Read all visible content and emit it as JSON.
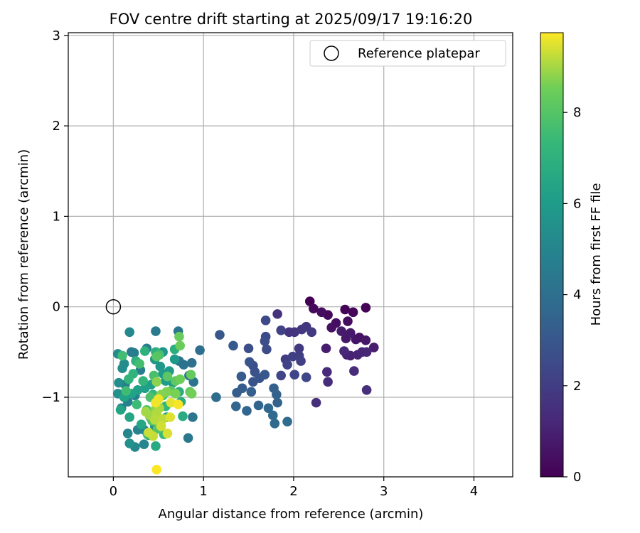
{
  "chart_data": {
    "type": "scatter",
    "title": "FOV centre drift starting at 2025/09/17 19:16:20",
    "xlabel": "Angular distance from reference (arcmin)",
    "ylabel": "Rotation from reference (arcmin)",
    "xlim": [
      -0.5,
      4.43
    ],
    "ylim": [
      -1.88,
      3.03
    ],
    "xticks": [
      0,
      1,
      2,
      3,
      4
    ],
    "yticks": [
      -1,
      0,
      1,
      2,
      3
    ],
    "grid": true,
    "legend": {
      "placement": "top-right",
      "label": "Reference platepar"
    },
    "reference_point": {
      "x": 0,
      "y": 0
    },
    "colorbar": {
      "label": "Hours from first FF file",
      "min": 0,
      "max": 9.75,
      "ticks": [
        0,
        2,
        4,
        6,
        8
      ],
      "colormap": "viridis"
    },
    "series": [
      {
        "fields": [
          "x",
          "y",
          "hours"
        ],
        "points": [
          [
            2.18,
            0.06
          ],
          [
            2.8,
            -0.01
          ],
          [
            2.57,
            -0.03
          ],
          [
            2.66,
            -0.06
          ],
          [
            2.38,
            -0.09
          ],
          [
            2.22,
            -0.02
          ],
          [
            2.31,
            -0.06
          ],
          [
            2.6,
            -0.16
          ],
          [
            2.47,
            -0.18
          ],
          [
            2.42,
            -0.23
          ],
          [
            2.73,
            -0.34
          ],
          [
            2.69,
            -0.36
          ],
          [
            2.8,
            -0.37
          ],
          [
            2.58,
            -0.35
          ],
          [
            2.63,
            -0.29
          ],
          [
            2.53,
            -0.27
          ],
          [
            2.89,
            -0.45
          ],
          [
            2.36,
            -0.46
          ],
          [
            2.59,
            -0.53
          ],
          [
            2.63,
            -0.54
          ],
          [
            2.71,
            -0.53
          ],
          [
            2.76,
            -0.5
          ],
          [
            2.81,
            -0.5
          ],
          [
            2.56,
            -0.49
          ],
          [
            2.37,
            -0.72
          ],
          [
            2.67,
            -0.71
          ],
          [
            2.38,
            -0.83
          ],
          [
            2.81,
            -0.92
          ],
          [
            2.25,
            -1.06
          ],
          [
            1.82,
            -0.08
          ],
          [
            1.95,
            -0.28
          ],
          [
            2.01,
            -0.28
          ],
          [
            2.14,
            -0.22
          ],
          [
            2.09,
            -0.25
          ],
          [
            2.2,
            -0.28
          ],
          [
            2.06,
            -0.46
          ],
          [
            2.06,
            -0.54
          ],
          [
            1.91,
            -0.58
          ],
          [
            1.99,
            -0.55
          ],
          [
            2.08,
            -0.6
          ],
          [
            1.86,
            -0.26
          ],
          [
            1.93,
            -0.64
          ],
          [
            1.86,
            -0.76
          ],
          [
            2.01,
            -0.75
          ],
          [
            2.14,
            -0.78
          ],
          [
            1.69,
            -0.15
          ],
          [
            1.69,
            -0.33
          ],
          [
            1.7,
            -0.47
          ],
          [
            1.68,
            -0.38
          ],
          [
            1.5,
            -0.46
          ],
          [
            1.55,
            -0.65
          ],
          [
            1.57,
            -0.72
          ],
          [
            1.55,
            -0.83
          ],
          [
            1.62,
            -0.79
          ],
          [
            1.51,
            -0.61
          ],
          [
            1.68,
            -0.75
          ],
          [
            1.18,
            -0.31
          ],
          [
            1.33,
            -0.43
          ],
          [
            1.42,
            -0.77
          ],
          [
            1.43,
            -0.9
          ],
          [
            1.37,
            -0.95
          ],
          [
            1.53,
            -0.94
          ],
          [
            1.78,
            -0.9
          ],
          [
            1.81,
            -0.97
          ],
          [
            1.82,
            -1.06
          ],
          [
            1.61,
            -1.09
          ],
          [
            1.36,
            -1.1
          ],
          [
            1.48,
            -1.15
          ],
          [
            1.72,
            -1.12
          ],
          [
            1.77,
            -1.2
          ],
          [
            1.79,
            -1.29
          ],
          [
            1.93,
            -1.27
          ],
          [
            1.14,
            -1.0
          ],
          [
            0.96,
            -0.48
          ],
          [
            0.87,
            -0.62
          ],
          [
            0.84,
            -0.76
          ],
          [
            0.78,
            -0.64
          ],
          [
            0.73,
            -0.6
          ],
          [
            0.89,
            -0.83
          ],
          [
            0.72,
            -0.27
          ],
          [
            0.88,
            -1.22
          ],
          [
            0.83,
            -1.45
          ],
          [
            0.47,
            -0.27
          ],
          [
            0.2,
            -0.5
          ],
          [
            0.23,
            -0.51
          ],
          [
            0.37,
            -0.46
          ],
          [
            0.3,
            -0.7
          ],
          [
            0.13,
            -0.86
          ],
          [
            0.24,
            -0.98
          ],
          [
            0.16,
            -1.05
          ],
          [
            0.09,
            -1.12
          ],
          [
            0.27,
            -1.36
          ],
          [
            0.34,
            -1.36
          ],
          [
            0.16,
            -1.4
          ],
          [
            0.34,
            -1.52
          ],
          [
            0.24,
            -1.55
          ],
          [
            0.18,
            -0.28
          ],
          [
            0.05,
            -0.52
          ],
          [
            0.12,
            -0.63
          ],
          [
            0.1,
            -0.68
          ],
          [
            0.06,
            -0.84
          ],
          [
            0.05,
            -0.96
          ],
          [
            0.18,
            -1.51
          ],
          [
            0.46,
            -1.32
          ],
          [
            0.41,
            -1.22
          ],
          [
            0.55,
            -0.5
          ],
          [
            0.46,
            -0.58
          ],
          [
            0.52,
            -0.66
          ],
          [
            0.68,
            -0.58
          ],
          [
            0.62,
            -0.71
          ],
          [
            0.55,
            -0.74
          ],
          [
            0.58,
            -0.82
          ],
          [
            0.66,
            -0.84
          ],
          [
            0.42,
            -0.86
          ],
          [
            0.35,
            -0.9
          ],
          [
            0.27,
            -0.92
          ],
          [
            0.2,
            -0.96
          ],
          [
            0.12,
            -1.0
          ],
          [
            0.08,
            -1.14
          ],
          [
            0.18,
            -1.22
          ],
          [
            0.31,
            -1.3
          ],
          [
            0.39,
            -1.42
          ],
          [
            0.47,
            -1.54
          ],
          [
            0.59,
            -1.22
          ],
          [
            0.77,
            -1.21
          ],
          [
            0.75,
            -1.05
          ],
          [
            0.73,
            -0.94
          ],
          [
            0.68,
            -0.47
          ],
          [
            0.47,
            -0.5
          ],
          [
            0.35,
            -0.49
          ],
          [
            0.25,
            -0.6
          ],
          [
            0.22,
            -0.74
          ],
          [
            0.17,
            -0.8
          ],
          [
            0.33,
            -0.82
          ],
          [
            0.44,
            -0.97
          ],
          [
            0.58,
            -1.1
          ],
          [
            0.56,
            -1.41
          ],
          [
            0.38,
            -1.41
          ],
          [
            0.26,
            -1.08
          ],
          [
            0.14,
            -0.93
          ],
          [
            0.1,
            -0.54
          ],
          [
            0.29,
            -0.63
          ],
          [
            0.51,
            -0.53
          ],
          [
            0.45,
            -0.76
          ],
          [
            0.41,
            -1.0
          ],
          [
            0.55,
            -0.98
          ],
          [
            0.37,
            -1.14
          ],
          [
            0.43,
            -1.26
          ],
          [
            0.49,
            -1.35
          ],
          [
            0.48,
            -0.55
          ],
          [
            0.6,
            -0.77
          ],
          [
            0.64,
            -0.93
          ],
          [
            0.69,
            -0.82
          ],
          [
            0.85,
            -0.94
          ],
          [
            0.86,
            -0.75
          ],
          [
            0.73,
            -0.33
          ],
          [
            0.74,
            -0.43
          ],
          [
            0.74,
            -0.8
          ],
          [
            0.87,
            -0.96
          ],
          [
            0.69,
            -0.96
          ],
          [
            0.59,
            -0.94
          ],
          [
            0.53,
            -0.97
          ],
          [
            0.48,
            -0.83
          ],
          [
            0.47,
            -1.13
          ],
          [
            0.44,
            -1.2
          ],
          [
            0.4,
            -1.2
          ],
          [
            0.36,
            -1.16
          ],
          [
            0.51,
            -1.12
          ],
          [
            0.48,
            -1.18
          ],
          [
            0.46,
            -1.25
          ],
          [
            0.55,
            -1.24
          ],
          [
            0.44,
            -1.43
          ],
          [
            0.39,
            -1.39
          ],
          [
            0.53,
            -1.32
          ],
          [
            0.6,
            -1.4
          ],
          [
            0.63,
            -1.22
          ],
          [
            0.64,
            -1.06
          ],
          [
            0.5,
            -1.02
          ],
          [
            0.47,
            -1.06
          ],
          [
            0.72,
            -1.08
          ],
          [
            0.48,
            -1.8
          ]
        ]
      }
    ]
  }
}
